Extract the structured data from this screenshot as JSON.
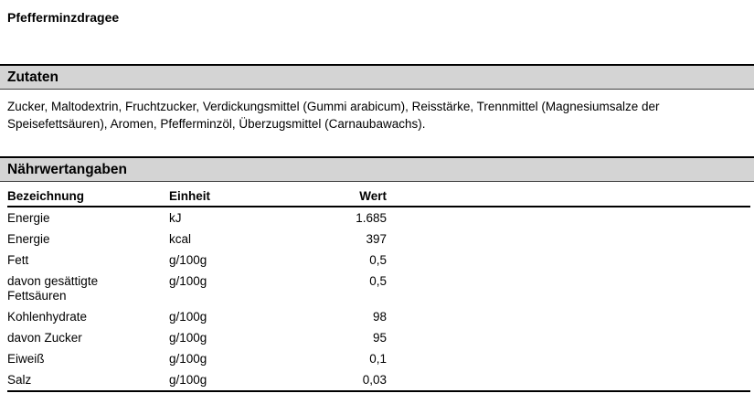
{
  "page": {
    "title": "Pfefferminzdragee"
  },
  "ingredients_section": {
    "heading": "Zutaten",
    "text": "Zucker, Maltodextrin, Fruchtzucker, Verdickungsmittel (Gummi arabicum), Reisstärke, Trennmittel (Magnesiumsalze der Speisefettsäuren), Aromen, Pfefferminzöl, Überzugsmittel (Carnaubawachs)."
  },
  "nutrition_section": {
    "heading": "Nährwertangaben",
    "table": {
      "columns": [
        "Bezeichnung",
        "Einheit",
        "Wert"
      ],
      "rows": [
        {
          "name": "Energie",
          "unit": "kJ",
          "value": "1.685"
        },
        {
          "name": "Energie",
          "unit": "kcal",
          "value": "397"
        },
        {
          "name": "Fett",
          "unit": "g/100g",
          "value": "0,5"
        },
        {
          "name": "davon gesättigte Fettsäuren",
          "unit": "g/100g",
          "value": "0,5"
        },
        {
          "name": "Kohlenhydrate",
          "unit": "g/100g",
          "value": "98"
        },
        {
          "name": "davon Zucker",
          "unit": "g/100g",
          "value": "95"
        },
        {
          "name": "Eiweiß",
          "unit": "g/100g",
          "value": "0,1"
        },
        {
          "name": "Salz",
          "unit": "g/100g",
          "value": "0,03"
        }
      ]
    }
  },
  "colors": {
    "section_bar_background": "#d4d4d4",
    "heavy_rule": "#000000",
    "thin_rule": "#404040"
  }
}
